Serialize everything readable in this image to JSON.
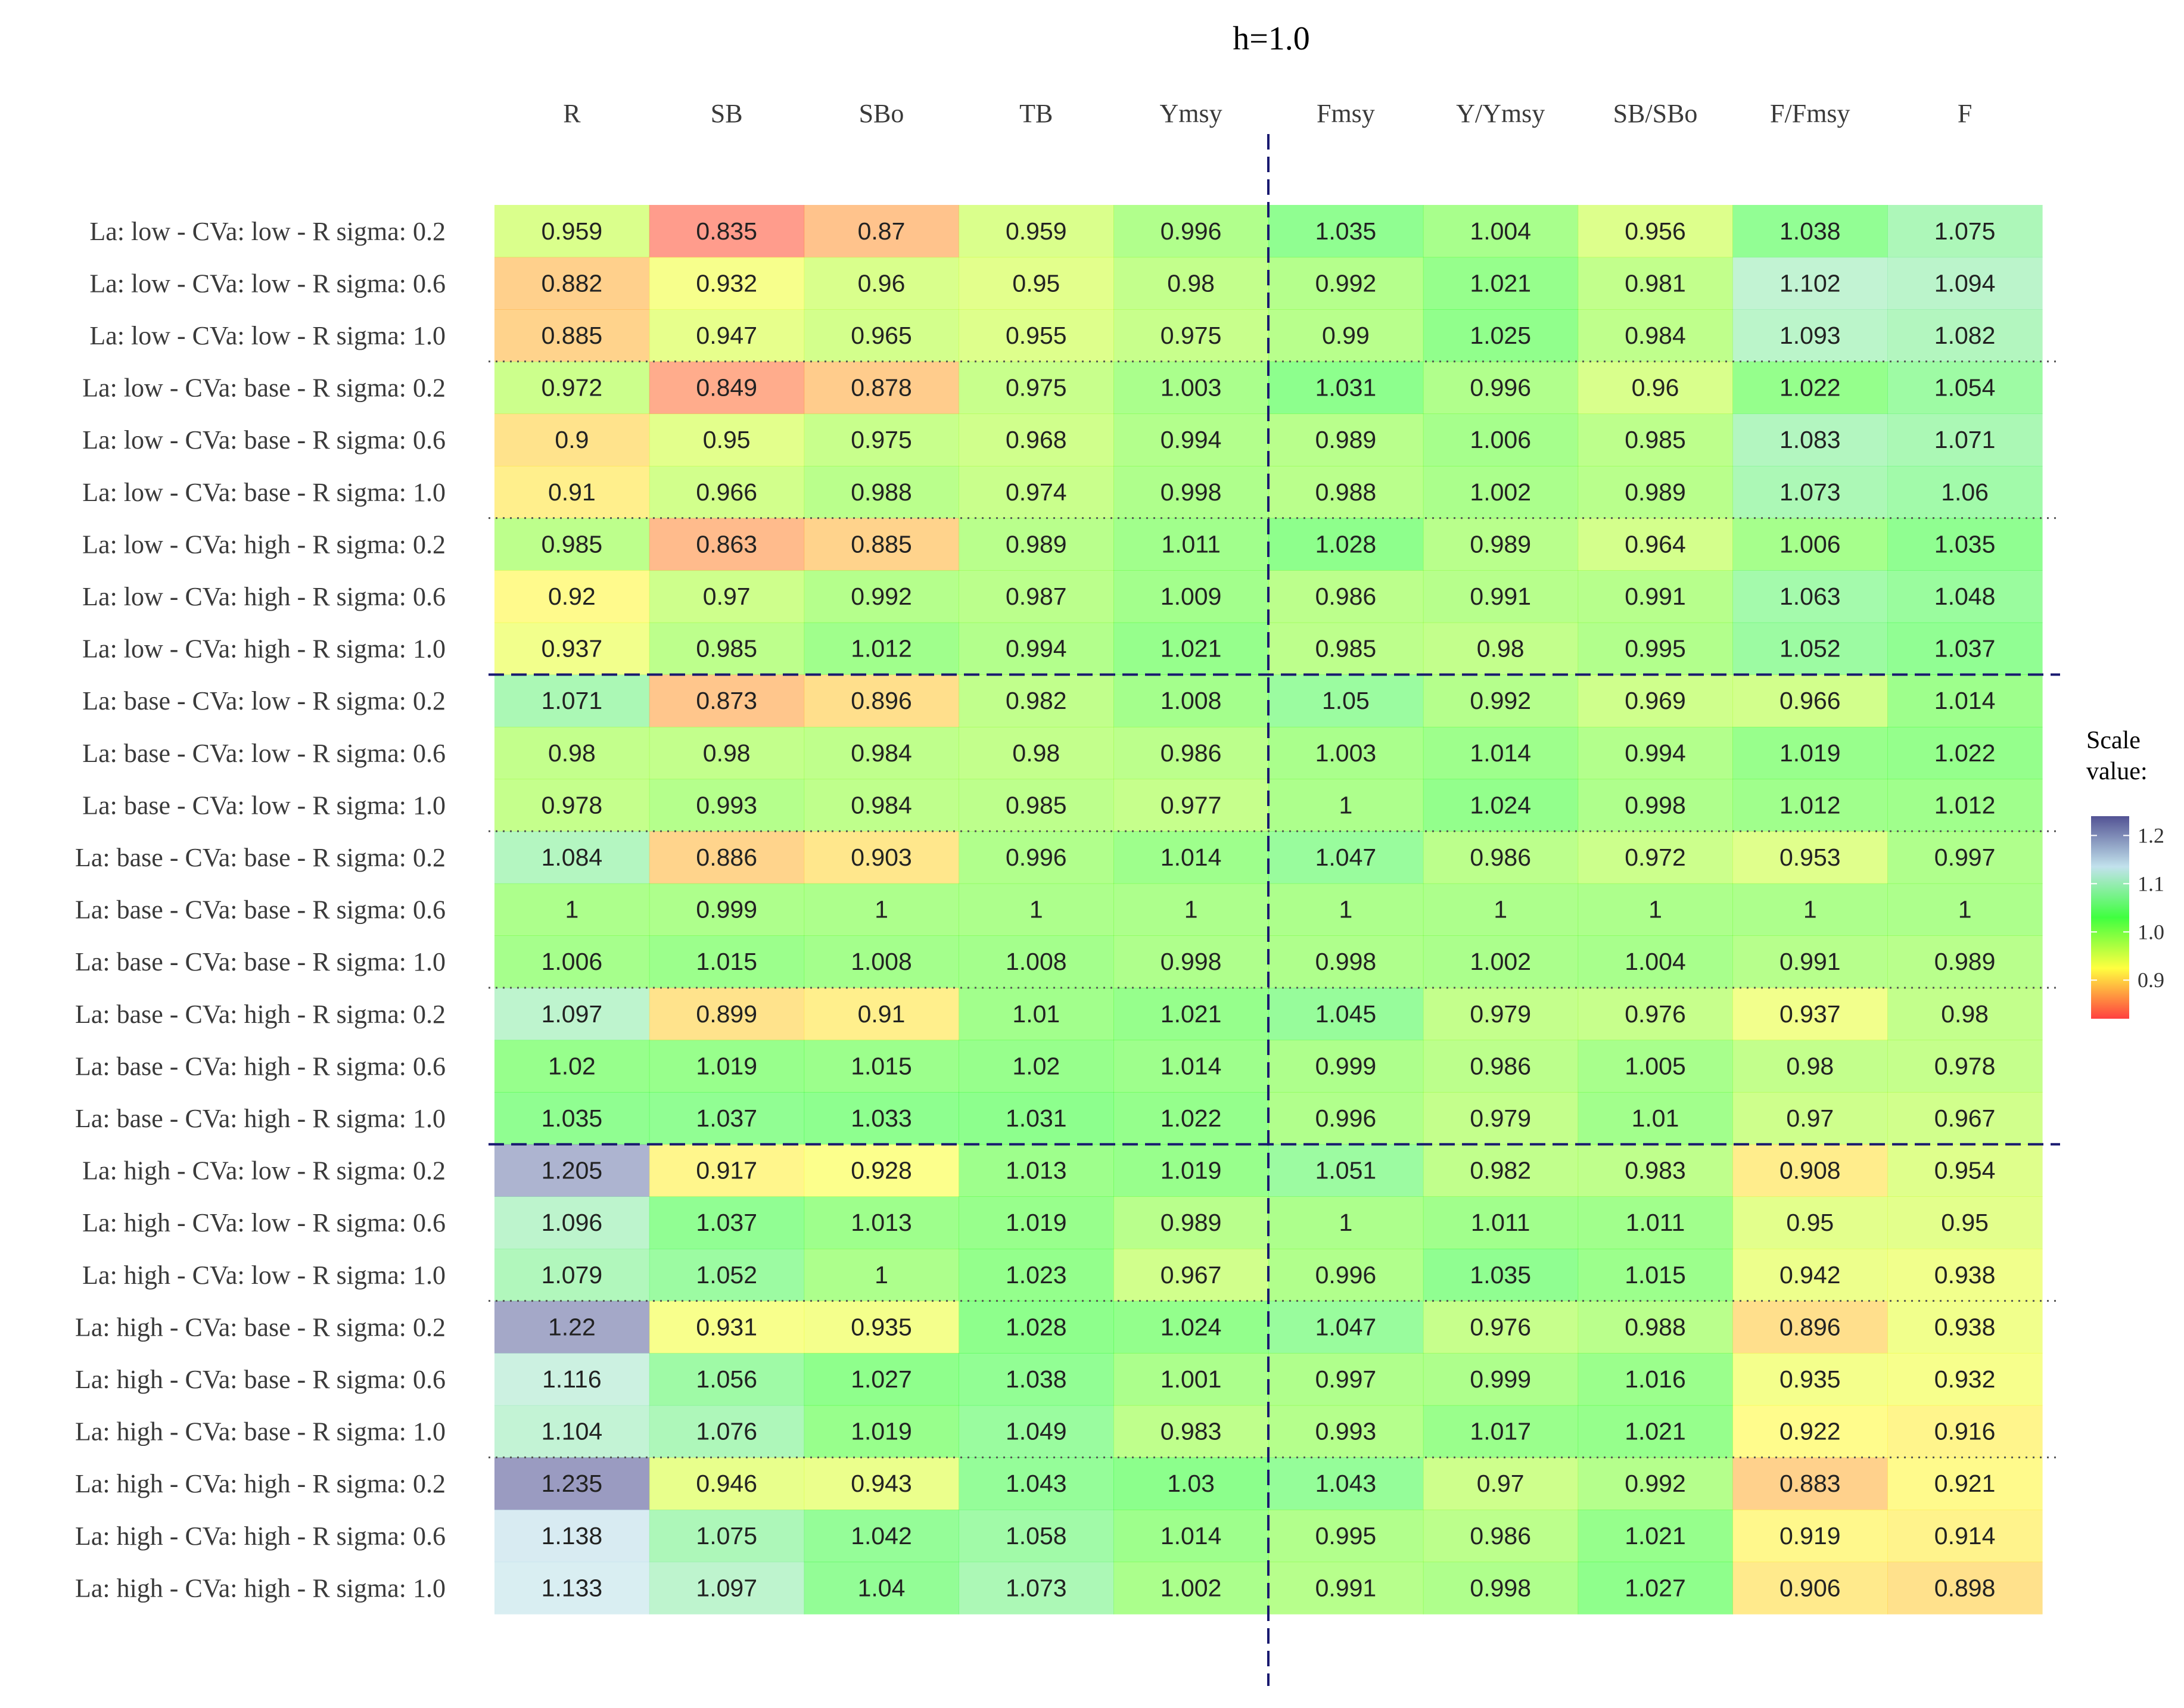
{
  "chart_data": {
    "type": "heatmap",
    "title": "h=1.0",
    "columns": [
      "R",
      "SB",
      "SBo",
      "TB",
      "Ymsy",
      "Fmsy",
      "Y/Ymsy",
      "SB/SBo",
      "F/Fmsy",
      "F"
    ],
    "rows": [
      "La: low - CVa: low - R sigma: 0.2",
      "La: low - CVa: low - R sigma: 0.6",
      "La: low - CVa: low - R sigma: 1.0",
      "La: low - CVa: base - R sigma: 0.2",
      "La: low - CVa: base - R sigma: 0.6",
      "La: low - CVa: base - R sigma: 1.0",
      "La: low - CVa: high - R sigma: 0.2",
      "La: low - CVa: high - R sigma: 0.6",
      "La: low - CVa: high - R sigma: 1.0",
      "La: base - CVa: low - R sigma: 0.2",
      "La: base - CVa: low - R sigma: 0.6",
      "La: base - CVa: low - R sigma: 1.0",
      "La: base - CVa: base - R sigma: 0.2",
      "La: base - CVa: base - R sigma: 0.6",
      "La: base - CVa: base - R sigma: 1.0",
      "La: base - CVa: high - R sigma: 0.2",
      "La: base - CVa: high - R sigma: 0.6",
      "La: base - CVa: high - R sigma: 1.0",
      "La: high - CVa: low - R sigma: 0.2",
      "La: high - CVa: low - R sigma: 0.6",
      "La: high - CVa: low - R sigma: 1.0",
      "La: high - CVa: base - R sigma: 0.2",
      "La: high - CVa: base - R sigma: 0.6",
      "La: high - CVa: base - R sigma: 1.0",
      "La: high - CVa: high - R sigma: 0.2",
      "La: high - CVa: high - R sigma: 0.6",
      "La: high - CVa: high - R sigma: 1.0"
    ],
    "values": [
      [
        "0.959",
        "0.835",
        "0.87",
        "0.959",
        "0.996",
        "1.035",
        "1.004",
        "0.956",
        "1.038",
        "1.075"
      ],
      [
        "0.882",
        "0.932",
        "0.96",
        "0.95",
        "0.98",
        "0.992",
        "1.021",
        "0.981",
        "1.102",
        "1.094"
      ],
      [
        "0.885",
        "0.947",
        "0.965",
        "0.955",
        "0.975",
        "0.99",
        "1.025",
        "0.984",
        "1.093",
        "1.082"
      ],
      [
        "0.972",
        "0.849",
        "0.878",
        "0.975",
        "1.003",
        "1.031",
        "0.996",
        "0.96",
        "1.022",
        "1.054"
      ],
      [
        "0.9",
        "0.95",
        "0.975",
        "0.968",
        "0.994",
        "0.989",
        "1.006",
        "0.985",
        "1.083",
        "1.071"
      ],
      [
        "0.91",
        "0.966",
        "0.988",
        "0.974",
        "0.998",
        "0.988",
        "1.002",
        "0.989",
        "1.073",
        "1.06"
      ],
      [
        "0.985",
        "0.863",
        "0.885",
        "0.989",
        "1.011",
        "1.028",
        "0.989",
        "0.964",
        "1.006",
        "1.035"
      ],
      [
        "0.92",
        "0.97",
        "0.992",
        "0.987",
        "1.009",
        "0.986",
        "0.991",
        "0.991",
        "1.063",
        "1.048"
      ],
      [
        "0.937",
        "0.985",
        "1.012",
        "0.994",
        "1.021",
        "0.985",
        "0.98",
        "0.995",
        "1.052",
        "1.037"
      ],
      [
        "1.071",
        "0.873",
        "0.896",
        "0.982",
        "1.008",
        "1.05",
        "0.992",
        "0.969",
        "0.966",
        "1.014"
      ],
      [
        "0.98",
        "0.98",
        "0.984",
        "0.98",
        "0.986",
        "1.003",
        "1.014",
        "0.994",
        "1.019",
        "1.022"
      ],
      [
        "0.978",
        "0.993",
        "0.984",
        "0.985",
        "0.977",
        "1",
        "1.024",
        "0.998",
        "1.012",
        "1.012"
      ],
      [
        "1.084",
        "0.886",
        "0.903",
        "0.996",
        "1.014",
        "1.047",
        "0.986",
        "0.972",
        "0.953",
        "0.997"
      ],
      [
        "1",
        "0.999",
        "1",
        "1",
        "1",
        "1",
        "1",
        "1",
        "1",
        "1"
      ],
      [
        "1.006",
        "1.015",
        "1.008",
        "1.008",
        "0.998",
        "0.998",
        "1.002",
        "1.004",
        "0.991",
        "0.989"
      ],
      [
        "1.097",
        "0.899",
        "0.91",
        "1.01",
        "1.021",
        "1.045",
        "0.979",
        "0.976",
        "0.937",
        "0.98"
      ],
      [
        "1.02",
        "1.019",
        "1.015",
        "1.02",
        "1.014",
        "0.999",
        "0.986",
        "1.005",
        "0.98",
        "0.978"
      ],
      [
        "1.035",
        "1.037",
        "1.033",
        "1.031",
        "1.022",
        "0.996",
        "0.979",
        "1.01",
        "0.97",
        "0.967"
      ],
      [
        "1.205",
        "0.917",
        "0.928",
        "1.013",
        "1.019",
        "1.051",
        "0.982",
        "0.983",
        "0.908",
        "0.954"
      ],
      [
        "1.096",
        "1.037",
        "1.013",
        "1.019",
        "0.989",
        "1",
        "1.011",
        "1.011",
        "0.95",
        "0.95"
      ],
      [
        "1.079",
        "1.052",
        "1",
        "1.023",
        "0.967",
        "0.996",
        "1.035",
        "1.015",
        "0.942",
        "0.938"
      ],
      [
        "1.22",
        "0.931",
        "0.935",
        "1.028",
        "1.024",
        "1.047",
        "0.976",
        "0.988",
        "0.896",
        "0.938"
      ],
      [
        "1.116",
        "1.056",
        "1.027",
        "1.038",
        "1.001",
        "0.997",
        "0.999",
        "1.016",
        "0.935",
        "0.932"
      ],
      [
        "1.104",
        "1.076",
        "1.019",
        "1.049",
        "0.983",
        "0.993",
        "1.017",
        "1.021",
        "0.922",
        "0.916"
      ],
      [
        "1.235",
        "0.946",
        "0.943",
        "1.043",
        "1.03",
        "1.043",
        "0.97",
        "0.992",
        "0.883",
        "0.921"
      ],
      [
        "1.138",
        "1.075",
        "1.042",
        "1.058",
        "1.014",
        "0.995",
        "0.986",
        "1.021",
        "0.919",
        "0.914"
      ],
      [
        "1.133",
        "1.097",
        "1.04",
        "1.073",
        "1.002",
        "0.991",
        "0.998",
        "1.027",
        "0.906",
        "0.898"
      ]
    ],
    "legend": {
      "title": [
        "Scale",
        "value:"
      ],
      "ticks": [
        "1.2",
        "1.1",
        "1.0",
        "0.9"
      ],
      "range": [
        0.82,
        1.24
      ],
      "colors": [
        "#ff0000",
        "#ffff00",
        "#00ff00",
        "#add8e6",
        "#191970"
      ]
    }
  }
}
